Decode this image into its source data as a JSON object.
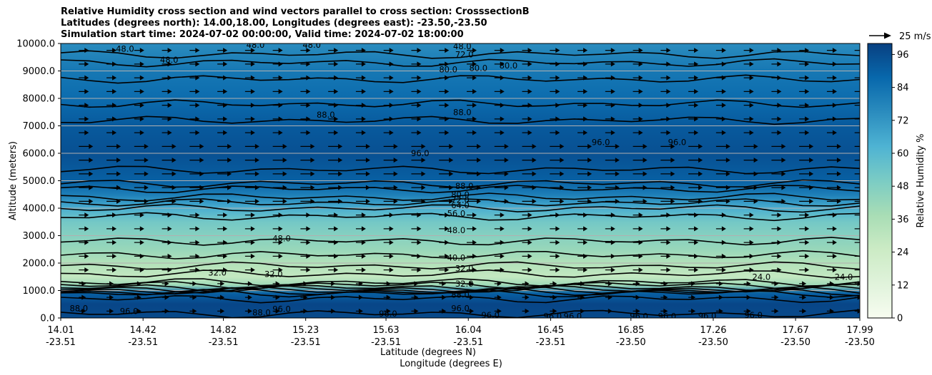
{
  "chart_data": {
    "type": "heatmap",
    "title": [
      "Relative Humidity cross section and wind vectors parallel to cross section: CrosssectionB",
      "Latitudes (degrees north): 14.00,18.00, Longitudes (degrees east): -23.50,-23.50",
      "Simulation start time: 2024-07-02 00:00:00, Valid time: 2024-07-02 18:00:00"
    ],
    "xlabel": "Latitude (degrees N)",
    "xlabel2": "Longitude (degrees E)",
    "ylabel": "Altitude (meters)",
    "x_ticks": [
      {
        "lat": "14.01",
        "lon": "-23.51"
      },
      {
        "lat": "14.42",
        "lon": "-23.51"
      },
      {
        "lat": "14.82",
        "lon": "-23.51"
      },
      {
        "lat": "15.23",
        "lon": "-23.51"
      },
      {
        "lat": "15.63",
        "lon": "-23.51"
      },
      {
        "lat": "16.04",
        "lon": "-23.51"
      },
      {
        "lat": "16.45",
        "lon": "-23.51"
      },
      {
        "lat": "16.85",
        "lon": "-23.50"
      },
      {
        "lat": "17.26",
        "lon": "-23.50"
      },
      {
        "lat": "17.67",
        "lon": "-23.50"
      },
      {
        "lat": "17.99",
        "lon": "-23.50"
      }
    ],
    "xlim": [
      14.01,
      17.99
    ],
    "y_ticks": [
      "0.0",
      "1000.0",
      "2000.0",
      "3000.0",
      "4000.0",
      "5000.0",
      "6000.0",
      "7000.0",
      "8000.0",
      "9000.0",
      "10000.0"
    ],
    "ylim": [
      0,
      10000
    ],
    "grid": "horizontal",
    "colorbar": {
      "label": "Relative Humidity %",
      "ticks": [
        "0",
        "12",
        "24",
        "36",
        "48",
        "60",
        "72",
        "84",
        "96"
      ],
      "range": [
        0,
        100
      ],
      "colormap": [
        "#f7fcf0",
        "#e0f3db",
        "#ccebc5",
        "#a8ddb5",
        "#7bccc4",
        "#4eb3d3",
        "#2b8cbe",
        "#0868ac",
        "#084081"
      ]
    },
    "quiver_key": "25 m/s",
    "rh_profile": [
      {
        "alt": 0,
        "rh": 97
      },
      {
        "alt": 500,
        "rh": 98
      },
      {
        "alt": 900,
        "rh": 90
      },
      {
        "alt": 1200,
        "rh": 40
      },
      {
        "alt": 1500,
        "rh": 28
      },
      {
        "alt": 2000,
        "rh": 34
      },
      {
        "alt": 2500,
        "rh": 42
      },
      {
        "alt": 3000,
        "rh": 47
      },
      {
        "alt": 3500,
        "rh": 52
      },
      {
        "alt": 4000,
        "rh": 64
      },
      {
        "alt": 4500,
        "rh": 80
      },
      {
        "alt": 5000,
        "rh": 90
      },
      {
        "alt": 6000,
        "rh": 95
      },
      {
        "alt": 7000,
        "rh": 92
      },
      {
        "alt": 8000,
        "rh": 86
      },
      {
        "alt": 9000,
        "rh": 82
      },
      {
        "alt": 10000,
        "rh": 75
      }
    ],
    "contour_labels": [
      {
        "text": "48.0",
        "lat": 14.33,
        "alt": 9800
      },
      {
        "text": "48.0",
        "lat": 14.98,
        "alt": 9950
      },
      {
        "text": "48.0",
        "lat": 15.26,
        "alt": 9950
      },
      {
        "text": "48.0",
        "lat": 14.55,
        "alt": 9400
      },
      {
        "text": "72.0",
        "lat": 16.02,
        "alt": 9600
      },
      {
        "text": "48.0",
        "lat": 16.01,
        "alt": 9900
      },
      {
        "text": "80.0",
        "lat": 15.94,
        "alt": 9050
      },
      {
        "text": "80.0",
        "lat": 16.09,
        "alt": 9100
      },
      {
        "text": "80.0",
        "lat": 16.24,
        "alt": 9200
      },
      {
        "text": "88.0",
        "lat": 15.33,
        "alt": 7400
      },
      {
        "text": "88.0",
        "lat": 16.01,
        "alt": 7500
      },
      {
        "text": "96.0",
        "lat": 16.7,
        "alt": 6400
      },
      {
        "text": "96.0",
        "lat": 17.08,
        "alt": 6400
      },
      {
        "text": "96.0",
        "lat": 15.8,
        "alt": 6000
      },
      {
        "text": "88.0",
        "lat": 16.02,
        "alt": 4800
      },
      {
        "text": "80.0",
        "lat": 16.0,
        "alt": 4500
      },
      {
        "text": "72.0",
        "lat": 16.0,
        "alt": 4300
      },
      {
        "text": "64.0",
        "lat": 16.0,
        "alt": 4100
      },
      {
        "text": "56.0",
        "lat": 15.98,
        "alt": 3800
      },
      {
        "text": "48.0",
        "lat": 15.98,
        "alt": 3200
      },
      {
        "text": "48.0",
        "lat": 15.11,
        "alt": 2900
      },
      {
        "text": "40.0",
        "lat": 15.98,
        "alt": 2200
      },
      {
        "text": "32.0",
        "lat": 16.02,
        "alt": 1800
      },
      {
        "text": "32.0",
        "lat": 15.07,
        "alt": 1600
      },
      {
        "text": "32.0",
        "lat": 14.79,
        "alt": 1650
      },
      {
        "text": "24.0",
        "lat": 17.5,
        "alt": 1500
      },
      {
        "text": "24.0",
        "lat": 17.91,
        "alt": 1500
      },
      {
        "text": "32.0",
        "lat": 16.02,
        "alt": 1250
      },
      {
        "text": "88.0",
        "lat": 16.0,
        "alt": 850
      },
      {
        "text": "96.0",
        "lat": 16.0,
        "alt": 350
      },
      {
        "text": "96.0",
        "lat": 15.64,
        "alt": 150
      },
      {
        "text": "96.0",
        "lat": 16.15,
        "alt": 100
      },
      {
        "text": "96.0",
        "lat": 16.46,
        "alt": 60
      },
      {
        "text": "96.0",
        "lat": 16.56,
        "alt": 60
      },
      {
        "text": "96.0",
        "lat": 16.89,
        "alt": 60
      },
      {
        "text": "96.0",
        "lat": 17.03,
        "alt": 60
      },
      {
        "text": "96.0",
        "lat": 17.23,
        "alt": 80
      },
      {
        "text": "96.0",
        "lat": 17.46,
        "alt": 100
      },
      {
        "text": "88.0",
        "lat": 14.1,
        "alt": 350
      },
      {
        "text": "96.0",
        "lat": 14.35,
        "alt": 250
      },
      {
        "text": "88.0",
        "lat": 15.01,
        "alt": 200
      },
      {
        "text": "96.0",
        "lat": 15.11,
        "alt": 320
      }
    ]
  }
}
